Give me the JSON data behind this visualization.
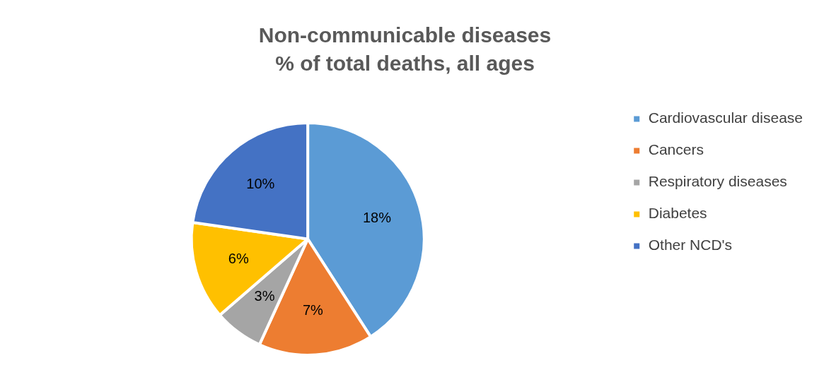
{
  "chart_data": {
    "type": "pie",
    "title": "Non-communicable diseases",
    "subtitle": "% of total deaths, all ages",
    "categories": [
      "Cardiovascular disease",
      "Cancers",
      "Respiratory diseases",
      "Diabetes",
      "Other NCD's"
    ],
    "values": [
      18,
      7,
      3,
      6,
      10
    ],
    "colors": [
      "#5b9bd5",
      "#ed7d31",
      "#a5a5a5",
      "#ffc000",
      "#4472c4"
    ],
    "value_labels": [
      "18%",
      "7%",
      "3%",
      "6%",
      "10%"
    ],
    "legend": "right"
  }
}
